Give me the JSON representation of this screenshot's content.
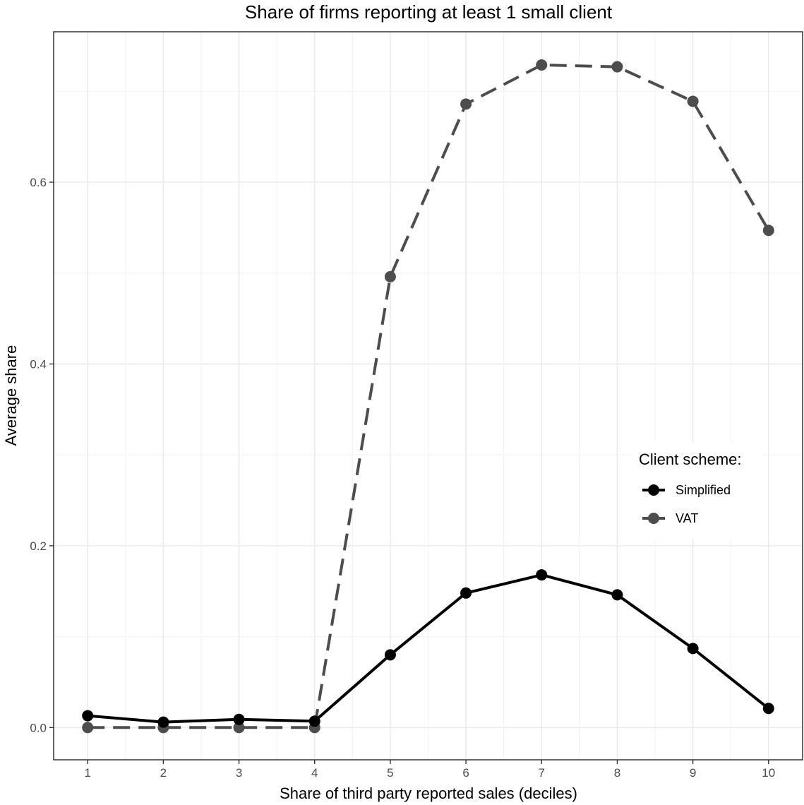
{
  "chart_data": {
    "type": "line",
    "title": "Share of firms reporting at least 1 small client",
    "xlabel": "Share of third party reported sales (deciles)",
    "ylabel": "Average share",
    "x": [
      1,
      2,
      3,
      4,
      5,
      6,
      7,
      8,
      9,
      10
    ],
    "x_ticks": [
      "1",
      "2",
      "3",
      "4",
      "5",
      "6",
      "7",
      "8",
      "9",
      "10"
    ],
    "y_ticks": [
      "0.0",
      "0.2",
      "0.4",
      "0.6"
    ],
    "y_tick_values": [
      0.0,
      0.2,
      0.4,
      0.6
    ],
    "xlim": [
      0.55,
      10.45
    ],
    "ylim": [
      -0.0355,
      0.7655
    ],
    "grid": true,
    "legend": {
      "title": "Client scheme:",
      "placement": "right"
    },
    "series": [
      {
        "name": "Simplified",
        "color": "#000000",
        "dash": "solid",
        "values": [
          0.013,
          0.006,
          0.009,
          0.007,
          0.08,
          0.148,
          0.168,
          0.146,
          0.087,
          0.021
        ]
      },
      {
        "name": "VAT",
        "color": "#4d4d4d",
        "dash": "dashed",
        "values": [
          0.0,
          0.0,
          0.0,
          0.0,
          0.496,
          0.686,
          0.729,
          0.727,
          0.689,
          0.547
        ]
      }
    ]
  }
}
